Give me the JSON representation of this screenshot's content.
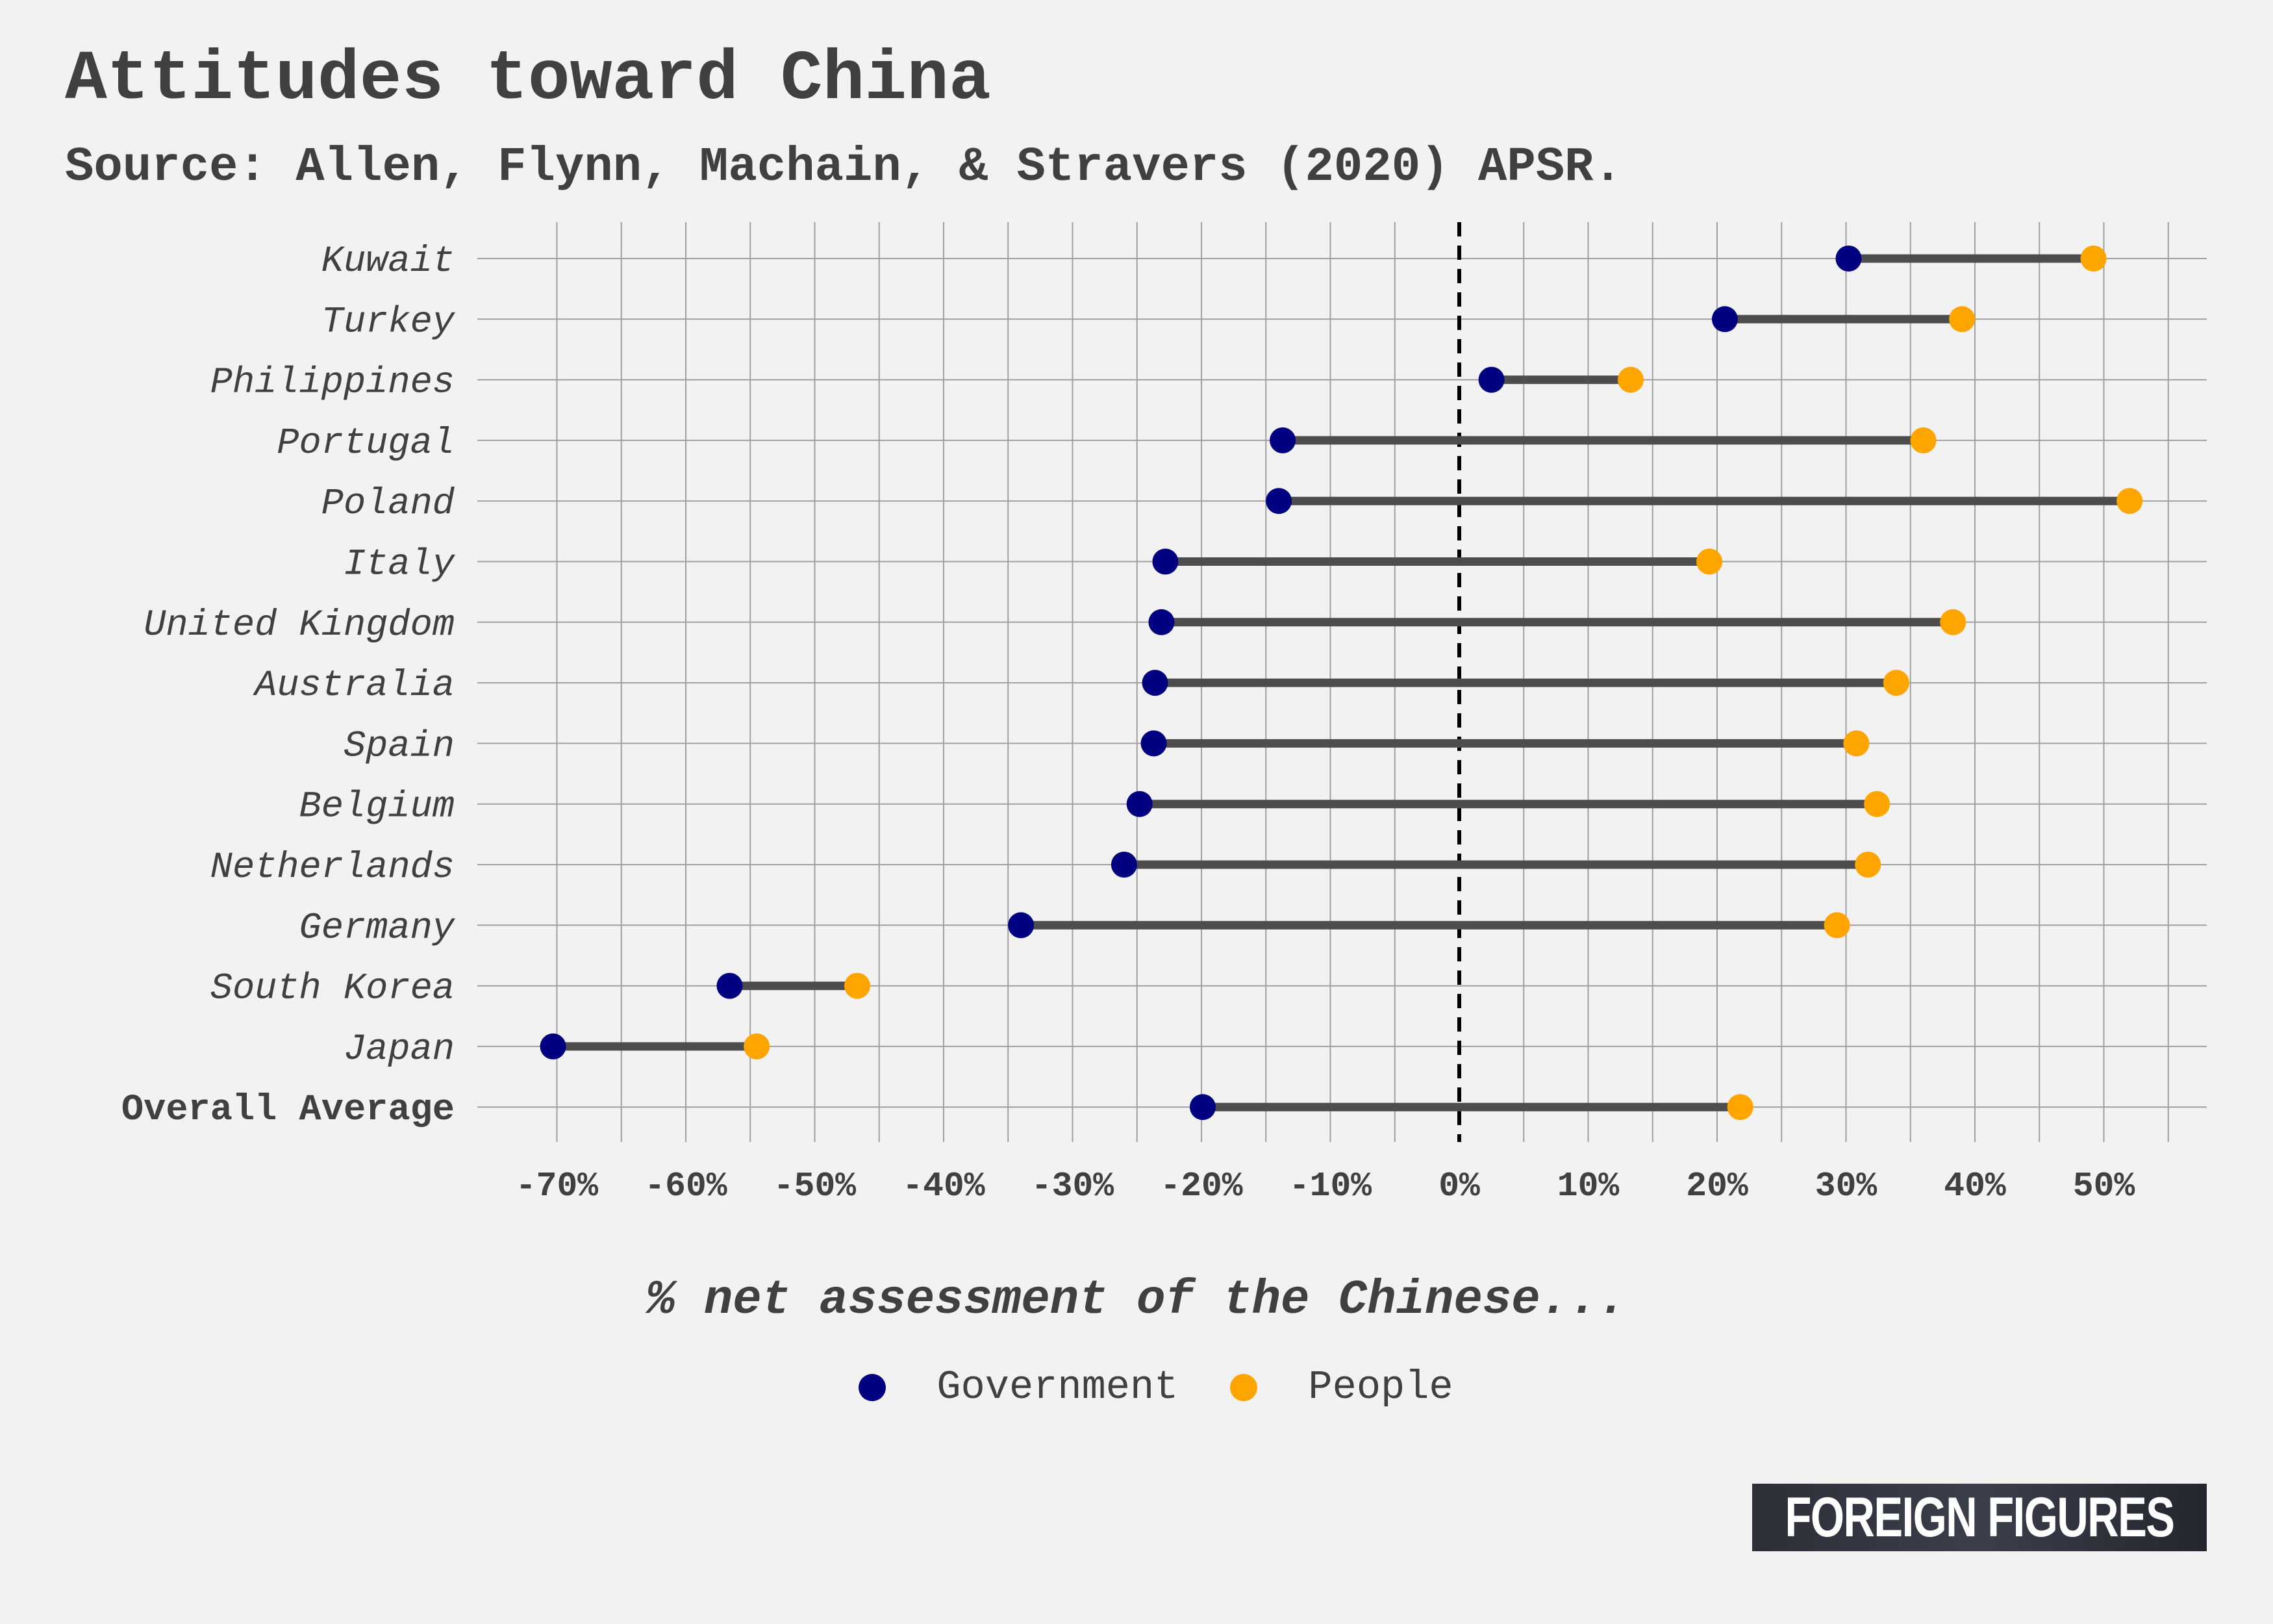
{
  "header": {
    "title": "Attitudes toward China",
    "subtitle": "Source: Allen, Flynn, Machain, & Stravers (2020) APSR."
  },
  "legend": {
    "government_label": "Government",
    "people_label": "People"
  },
  "logo": {
    "text": "FOREIGN FIGURES"
  },
  "chart_data": {
    "type": "dumbbell",
    "title": "Attitudes toward China",
    "subtitle": "Source: Allen, Flynn, Machain, & Stravers (2020) APSR.",
    "xlabel": "% net assessment of the Chinese...",
    "ylabel": "",
    "xlim": [
      -73,
      58
    ],
    "x_ticks": [
      -70,
      -60,
      -50,
      -40,
      -30,
      -20,
      -10,
      0,
      10,
      20,
      30,
      40,
      50
    ],
    "x_tick_labels": [
      "-70%",
      "-60%",
      "-50%",
      "-40%",
      "-30%",
      "-20%",
      "-10%",
      "0%",
      "10%",
      "20%",
      "30%",
      "40%",
      "50%"
    ],
    "reference_line": 0,
    "grid": true,
    "legend_position": "bottom",
    "categories": [
      "Kuwait",
      "Turkey",
      "Philippines",
      "Portugal",
      "Poland",
      "Italy",
      "United Kingdom",
      "Australia",
      "Spain",
      "Belgium",
      "Netherlands",
      "Germany",
      "South Korea",
      "Japan",
      "Overall Average"
    ],
    "series": [
      {
        "name": "Government",
        "color": "#000080",
        "values": [
          30.2,
          20.6,
          2.5,
          -13.7,
          -14.0,
          -22.8,
          -23.1,
          -23.6,
          -23.7,
          -24.8,
          -26.0,
          -34.0,
          -56.6,
          -70.3,
          -19.9
        ]
      },
      {
        "name": "People",
        "color": "#ffa500",
        "values": [
          49.2,
          39.0,
          13.3,
          36.0,
          52.0,
          19.4,
          38.3,
          33.9,
          30.8,
          32.4,
          31.7,
          29.3,
          -46.7,
          -54.5,
          21.8
        ]
      }
    ],
    "colors": {
      "segment": "#4d4d4d",
      "grid": "#a0a0a0",
      "zero_line": "#000000"
    }
  }
}
